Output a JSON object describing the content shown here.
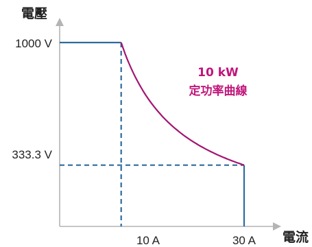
{
  "chart_data": {
    "type": "line",
    "ylabel": "電壓",
    "xlabel": "電流",
    "x_ticks": [
      "10 A",
      "30 A"
    ],
    "y_ticks": [
      "1000 V",
      "333.3 V"
    ],
    "xlim": [
      0,
      30
    ],
    "ylim": [
      0,
      1000
    ],
    "annotation": {
      "line1": "10 kW",
      "line2": "定功率曲線"
    },
    "series": [
      {
        "name": "",
        "points": [
          [
            0,
            1000
          ],
          [
            10,
            1000
          ]
        ],
        "style": "solid",
        "color": "#2e6a9e"
      },
      {
        "name": "",
        "points": [
          [
            30,
            333.3
          ],
          [
            30,
            0
          ]
        ],
        "style": "solid",
        "color": "#2e6a9e"
      },
      {
        "name": "10 kW 定功率曲線",
        "power_kw": 10,
        "x_range": [
          10,
          30
        ],
        "style": "solid",
        "color": "#a3156f"
      }
    ],
    "guides": [
      {
        "points": [
          [
            10,
            1000
          ],
          [
            10,
            0
          ]
        ],
        "style": "dashed",
        "color": "#2e6a9e"
      },
      {
        "points": [
          [
            0,
            333.3
          ],
          [
            30,
            333.3
          ]
        ],
        "style": "dashed",
        "color": "#2e6a9e"
      }
    ],
    "colors": {
      "axis": "#b4b4b4",
      "line": "#2e6a9e",
      "curve": "#a3156f",
      "annotation": "#c0157a"
    }
  }
}
